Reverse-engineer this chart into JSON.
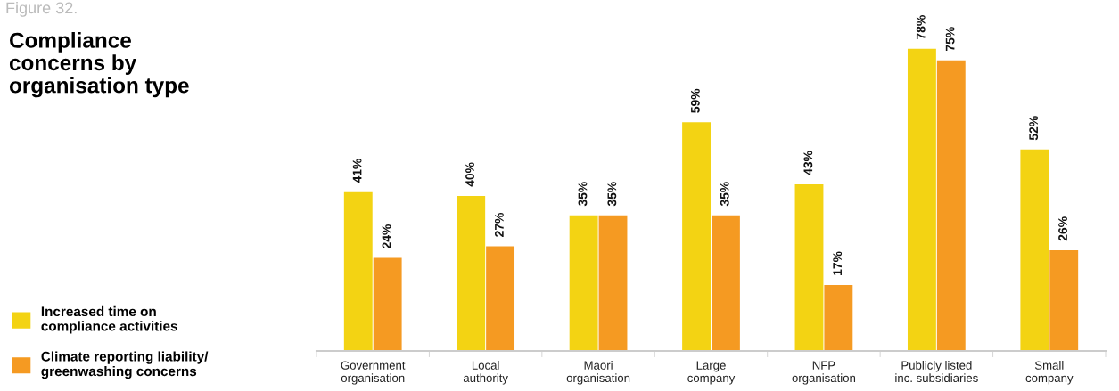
{
  "chart_data": {
    "type": "bar",
    "title": "Compliance\nconcerns by\norganisation type",
    "annotations": [
      "Figure 32."
    ],
    "categories": [
      "Government\norganisation",
      "Local\nauthority",
      "Māori\norganisation",
      "Large\ncompany",
      "NFP\norganisation",
      "Publicly listed\ninc. subsidiaries",
      "Small\ncompany"
    ],
    "series": [
      {
        "name": "Increased time on\ncompliance activities",
        "color": "#f3d313",
        "values": [
          41,
          40,
          35,
          59,
          43,
          78,
          52
        ],
        "value_labels": [
          "41%",
          "40%",
          "35%",
          "59%",
          "43%",
          "78%",
          "52%"
        ]
      },
      {
        "name": "Climate reporting liability/\ngreenwashing concerns",
        "color": "#f59a22",
        "values": [
          24,
          27,
          35,
          35,
          17,
          75,
          26
        ],
        "value_labels": [
          "24%",
          "27%",
          "35%",
          "35%",
          "17%",
          "75%",
          "26%"
        ]
      }
    ],
    "legend": "left",
    "grid": false
  }
}
